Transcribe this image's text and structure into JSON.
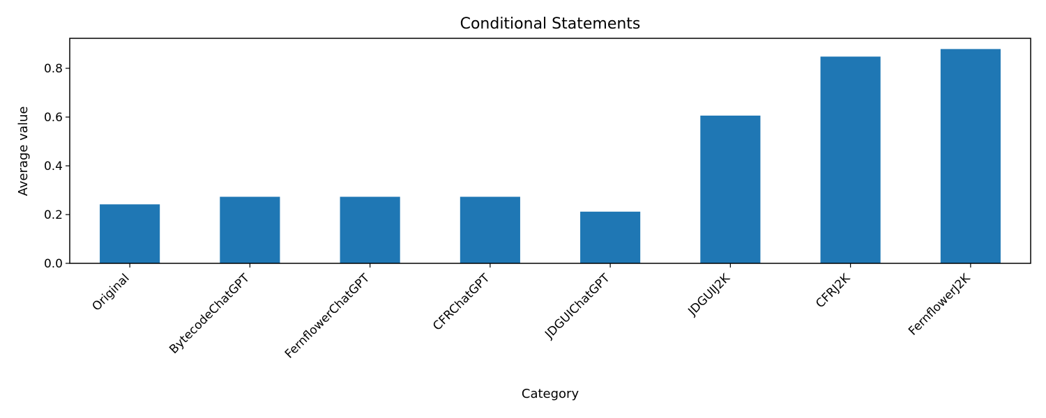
{
  "chart_data": {
    "type": "bar",
    "title": "Conditional Statements",
    "xlabel": "Category",
    "ylabel": "Average value",
    "categories": [
      "Original",
      "BytecodeChatGPT",
      "FernflowerChatGPT",
      "CFRChatGPT",
      "JDGUIChatGPT",
      "JDGUIJ2K",
      "CFRJ2K",
      "FernflowerJ2K"
    ],
    "values": [
      0.242,
      0.273,
      0.273,
      0.273,
      0.212,
      0.606,
      0.848,
      0.879
    ],
    "ylim": [
      0,
      0.923
    ],
    "yticks": [
      0.0,
      0.2,
      0.4,
      0.6,
      0.8
    ],
    "ytick_labels": [
      "0.0",
      "0.2",
      "0.4",
      "0.6",
      "0.8"
    ],
    "bar_color": "#1f77b4",
    "grid": false,
    "legend": "none"
  }
}
